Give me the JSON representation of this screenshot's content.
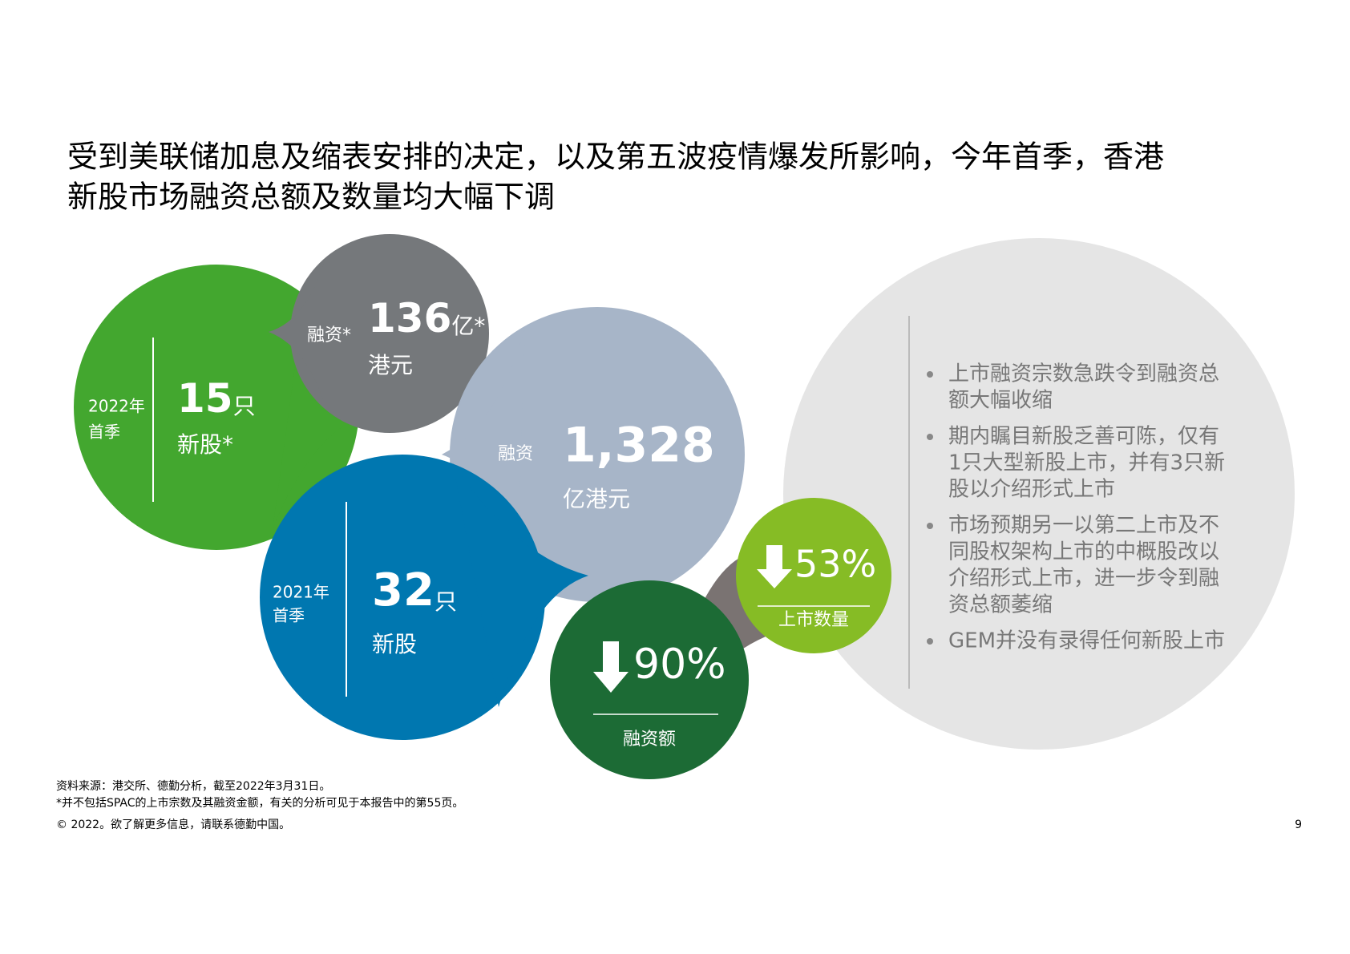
{
  "title": [
    "受到美联储加息及缩表安排的决定，以及第五波疫情爆发所影响，今年首季，香港",
    "新股市场融资总额及数量均大幅下调"
  ],
  "bubbles": {
    "q1_2022_ipos": {
      "period": [
        "2022年",
        "首季"
      ],
      "value": "15",
      "unit": "只",
      "label": "新股*"
    },
    "q1_2022_funds": {
      "prefix": "融资*",
      "value": "136",
      "unit": "亿*",
      "label": "港元"
    },
    "q1_2021_funds": {
      "prefix": "融资",
      "value": "1,328",
      "label": "亿港元"
    },
    "q1_2021_ipos": {
      "period": [
        "2021年",
        "首季"
      ],
      "value": "32",
      "unit": "只",
      "label": "新股"
    },
    "ipo_count_change": {
      "value": "53%",
      "label": "上市数量"
    },
    "funds_change": {
      "value": "90%",
      "label": "融资额"
    }
  },
  "bullets": [
    [
      "上市融资宗数急跌令到融资总",
      "额大幅收缩"
    ],
    [
      "期内瞩目新股乏善可陈，仅有",
      "1只大型新股上市，并有3只新",
      "股以介绍形式上市"
    ],
    [
      "市场预期另一以第二上市及不",
      "同股权架构上市的中概股改以",
      "介绍形式上市，进一步令到融",
      "资总额萎缩"
    ],
    [
      "GEM并没有录得任何新股上市"
    ]
  ],
  "footer": {
    "source": "资料来源：港交所、德勤分析，截至2022年3月31日。",
    "note": "*并不包括SPAC的上市宗数及其融资金额，有关的分析可见于本报告中的第55页。",
    "copyright": "© 2022。欲了解更多信息，请联系德勤中国。",
    "page": "9"
  }
}
